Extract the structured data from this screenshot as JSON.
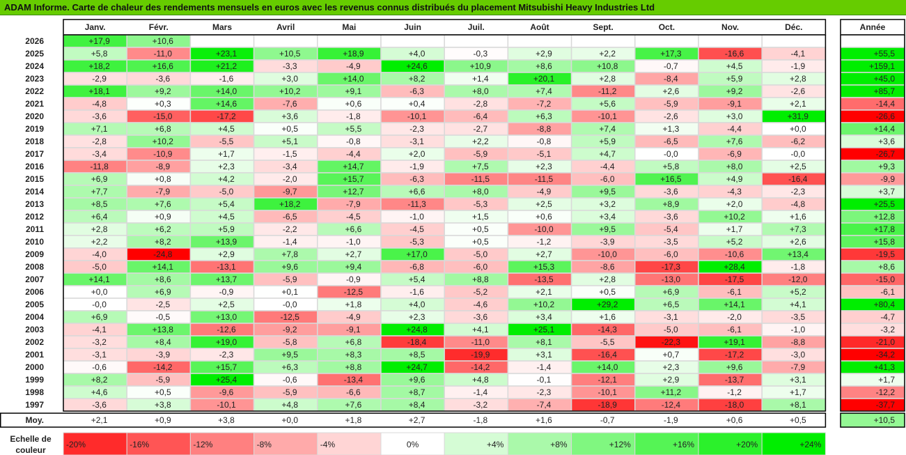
{
  "title": "ADAM Informe. Carte de chaleur des rendements mensuels en euros avec les revenus connus distribués du placement Mitsubishi Heavy Industries Ltd",
  "chart_data": {
    "type": "heatmap",
    "months": [
      "Janv.",
      "Févr.",
      "Mars",
      "Avril",
      "Mai",
      "Juin",
      "Juil.",
      "Août",
      "Sept.",
      "Oct.",
      "Nov.",
      "Déc."
    ],
    "year_header": "Année",
    "avg_label": "Moy.",
    "scale_label": "Echelle de couleur",
    "rows": [
      {
        "year": "2026",
        "values": [
          "+17,9",
          "+10,6",
          null,
          null,
          null,
          null,
          null,
          null,
          null,
          null,
          null,
          null
        ],
        "annual": null
      },
      {
        "year": "2025",
        "values": [
          "+5,8",
          "-11,0",
          "+23,1",
          "+10,5",
          "+18,9",
          "+4,0",
          "-0,3",
          "+2,9",
          "+2,2",
          "+17,3",
          "-16,6",
          "-4,1"
        ],
        "annual": "+55,5"
      },
      {
        "year": "2024",
        "values": [
          "+18,2",
          "+16,6",
          "+21,2",
          "-3,3",
          "-4,9",
          "+24,6",
          "+10,9",
          "+8,6",
          "+10,8",
          "-0,7",
          "+4,5",
          "-1,9"
        ],
        "annual": "+159,1"
      },
      {
        "year": "2023",
        "values": [
          "-2,9",
          "-3,6",
          "-1,6",
          "+3,0",
          "+14,0",
          "+8,2",
          "+1,4",
          "+20,1",
          "+2,8",
          "-8,4",
          "+5,9",
          "+2,8"
        ],
        "annual": "+45,0"
      },
      {
        "year": "2022",
        "values": [
          "+18,1",
          "+9,2",
          "+14,0",
          "+10,2",
          "+9,1",
          "-6,3",
          "+8,0",
          "+7,4",
          "-11,2",
          "+2,6",
          "+9,2",
          "-2,6"
        ],
        "annual": "+85,7"
      },
      {
        "year": "2021",
        "values": [
          "-4,8",
          "+0,3",
          "+14,6",
          "-7,6",
          "+0,6",
          "+0,4",
          "-2,8",
          "-7,2",
          "+5,6",
          "-5,9",
          "-9,1",
          "+2,1"
        ],
        "annual": "-14,4"
      },
      {
        "year": "2020",
        "values": [
          "-3,6",
          "-15,0",
          "-17,2",
          "+3,6",
          "-1,8",
          "-10,1",
          "-6,4",
          "+6,3",
          "-10,1",
          "-2,6",
          "+3,0",
          "+31,9"
        ],
        "annual": "-26,6"
      },
      {
        "year": "2019",
        "values": [
          "+7,1",
          "+6,8",
          "+4,5",
          "+0,5",
          "+5,5",
          "-2,3",
          "-2,7",
          "-8,8",
          "+7,4",
          "+1,3",
          "-4,4",
          "+0,0"
        ],
        "annual": "+14,4"
      },
      {
        "year": "2018",
        "values": [
          "-2,8",
          "+10,2",
          "-5,5",
          "+5,1",
          "-0,8",
          "-3,1",
          "+2,2",
          "-0,8",
          "+5,9",
          "-6,5",
          "+7,6",
          "-6,2"
        ],
        "annual": "+3,6"
      },
      {
        "year": "2017",
        "values": [
          "-3,4",
          "-10,9",
          "+1,7",
          "-1,5",
          "-4,4",
          "+2,0",
          "-5,9",
          "-5,1",
          "+4,7",
          "-0,0",
          "-6,9",
          "-0,0"
        ],
        "annual": "-26,7"
      },
      {
        "year": "2016",
        "values": [
          "-11,8",
          "-8,9",
          "+2,3",
          "-3,4",
          "+14,7",
          "-1,9",
          "+7,5",
          "+2,3",
          "-4,4",
          "+5,8",
          "+8,0",
          "+2,5"
        ],
        "annual": "+9,3"
      },
      {
        "year": "2015",
        "values": [
          "+6,9",
          "+0,8",
          "+4,2",
          "-2,0",
          "+15,7",
          "-6,3",
          "-11,5",
          "-11,5",
          "-6,0",
          "+16,5",
          "+4,9",
          "-16,4"
        ],
        "annual": "-9,9"
      },
      {
        "year": "2014",
        "values": [
          "+7,7",
          "-7,9",
          "-5,0",
          "-9,7",
          "+12,7",
          "+6,6",
          "+8,0",
          "-4,9",
          "+9,5",
          "-3,6",
          "-4,3",
          "-2,3"
        ],
        "annual": "+3,7"
      },
      {
        "year": "2013",
        "values": [
          "+8,5",
          "+7,6",
          "+5,4",
          "+18,2",
          "-7,9",
          "-11,3",
          "-5,3",
          "+2,5",
          "+3,2",
          "+8,9",
          "+2,0",
          "-4,8"
        ],
        "annual": "+25,5"
      },
      {
        "year": "2012",
        "values": [
          "+6,4",
          "+0,9",
          "+4,5",
          "-6,5",
          "-4,5",
          "-1,0",
          "+1,5",
          "+0,6",
          "+3,4",
          "-3,6",
          "+10,2",
          "+1,6"
        ],
        "annual": "+12,8"
      },
      {
        "year": "2011",
        "values": [
          "+2,8",
          "+6,2",
          "+5,9",
          "-2,2",
          "+6,6",
          "-4,5",
          "+0,5",
          "-10,0",
          "+9,5",
          "-5,4",
          "+1,7",
          "+7,3"
        ],
        "annual": "+17,8"
      },
      {
        "year": "2010",
        "values": [
          "+2,2",
          "+8,2",
          "+13,9",
          "-1,4",
          "-1,0",
          "-5,3",
          "+0,5",
          "-1,2",
          "-3,9",
          "-3,5",
          "+5,2",
          "+2,6"
        ],
        "annual": "+15,8"
      },
      {
        "year": "2009",
        "values": [
          "-4,0",
          "-24,8",
          "+2,9",
          "+7,8",
          "+2,7",
          "+17,0",
          "-5,0",
          "+2,7",
          "-10,0",
          "-6,0",
          "-10,6",
          "+13,4"
        ],
        "annual": "-19,5"
      },
      {
        "year": "2008",
        "values": [
          "-5,0",
          "+14,1",
          "-13,1",
          "+9,6",
          "+9,4",
          "-6,8",
          "-6,0",
          "+15,3",
          "-8,6",
          "-17,3",
          "+28,4",
          "-1,8"
        ],
        "annual": "+8,6"
      },
      {
        "year": "2007",
        "values": [
          "+14,1",
          "+8,6",
          "+13,7",
          "-5,9",
          "-0,9",
          "+5,4",
          "+8,8",
          "-13,5",
          "+2,8",
          "-13,0",
          "-17,5",
          "-12,0"
        ],
        "annual": "-15,0"
      },
      {
        "year": "2006",
        "values": [
          "+0,0",
          "+6,9",
          "-0,9",
          "+0,1",
          "-12,5",
          "-1,6",
          "-5,2",
          "+2,1",
          "+0,5",
          "+6,9",
          "-6,1",
          "+5,2"
        ],
        "annual": "-6,1"
      },
      {
        "year": "2005",
        "values": [
          "-0,0",
          "-2,5",
          "+2,5",
          "-0,0",
          "+1,8",
          "+4,0",
          "-4,6",
          "+10,2",
          "+29,2",
          "+6,5",
          "+14,1",
          "+4,1"
        ],
        "annual": "+80,4"
      },
      {
        "year": "2004",
        "values": [
          "+6,9",
          "-0,5",
          "+13,0",
          "-12,5",
          "-4,9",
          "+2,3",
          "-3,6",
          "+3,4",
          "+1,6",
          "-3,1",
          "-2,0",
          "-3,5"
        ],
        "annual": "-4,7"
      },
      {
        "year": "2003",
        "values": [
          "-4,1",
          "+13,8",
          "-12,6",
          "-9,2",
          "-9,1",
          "+24,8",
          "+4,1",
          "+25,1",
          "-14,3",
          "-5,0",
          "-6,1",
          "-1,0"
        ],
        "annual": "-3,2"
      },
      {
        "year": "2002",
        "values": [
          "-3,2",
          "+8,4",
          "+19,0",
          "-5,8",
          "+6,8",
          "-18,4",
          "-11,0",
          "+8,1",
          "-5,5",
          "-22,3",
          "+19,1",
          "-8,8"
        ],
        "annual": "-21,0"
      },
      {
        "year": "2001",
        "values": [
          "-3,1",
          "-3,9",
          "-2,3",
          "+9,5",
          "+8,3",
          "+8,5",
          "-19,9",
          "+3,1",
          "-16,4",
          "+0,7",
          "-17,2",
          "-3,0"
        ],
        "annual": "-34,2"
      },
      {
        "year": "2000",
        "values": [
          "-0,6",
          "-14,2",
          "+15,7",
          "+6,3",
          "+8,8",
          "+24,7",
          "-14,2",
          "-1,4",
          "+14,0",
          "+2,3",
          "+9,6",
          "-7,9"
        ],
        "annual": "+41,3"
      },
      {
        "year": "1999",
        "values": [
          "+8,2",
          "-5,9",
          "+25,4",
          "-0,6",
          "-13,4",
          "+9,6",
          "+4,8",
          "-0,1",
          "-12,1",
          "+2,9",
          "-13,7",
          "+3,1"
        ],
        "annual": "+1,7"
      },
      {
        "year": "1998",
        "values": [
          "+4,6",
          "+0,5",
          "-9,6",
          "-5,9",
          "-6,6",
          "+8,7",
          "-1,4",
          "-2,3",
          "-10,1",
          "+11,2",
          "-1,2",
          "+1,7"
        ],
        "annual": "-12,2"
      },
      {
        "year": "1997",
        "values": [
          "-3,6",
          "+3,8",
          "-10,1",
          "+4,8",
          "+7,6",
          "+8,4",
          "-3,2",
          "-7,4",
          "-18,9",
          "-12,4",
          "-18,0",
          "+8,1"
        ],
        "annual": "-37,7"
      }
    ],
    "averages": [
      "+2,1",
      "+0,9",
      "+3,8",
      "+0,0",
      "+1,8",
      "+2,7",
      "-1,8",
      "+1,6",
      "-0,7",
      "-1,9",
      "+0,6",
      "+0,5"
    ],
    "average_annual": "+10,5",
    "scale": [
      {
        "label": "-20%",
        "value": -20
      },
      {
        "label": "-16%",
        "value": -16
      },
      {
        "label": "-12%",
        "value": -12
      },
      {
        "label": "-8%",
        "value": -8
      },
      {
        "label": "-4%",
        "value": -4
      },
      {
        "label": "0%",
        "value": 0
      },
      {
        "label": "+4%",
        "value": 4
      },
      {
        "label": "+8%",
        "value": 8
      },
      {
        "label": "+12%",
        "value": 12
      },
      {
        "label": "+16%",
        "value": 16
      },
      {
        "label": "+20%",
        "value": 20
      },
      {
        "label": "+24%",
        "value": 24
      }
    ],
    "colors": {
      "positive_max": "#00ee00",
      "negative_max": "#ff0000",
      "neutral": "#ffffff",
      "title_bar": "#66cc00"
    }
  }
}
